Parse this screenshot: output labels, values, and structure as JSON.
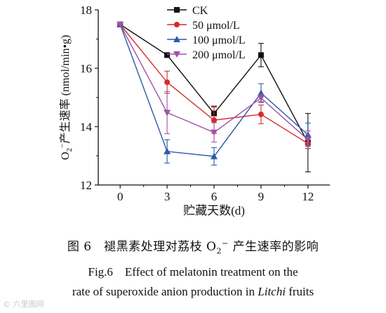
{
  "caption": {
    "cn_pre": "图 6　褪黑素处理对荔枝 O",
    "cn_sub": "2",
    "cn_sup": "−",
    "cn_post": " 产生速率的影响",
    "en_line1": "Fig.6　Effect of melatonin treatment on the",
    "en_line2_pre": "rate of superoxide anion production in ",
    "en_line2_italic": "Litchi",
    "en_line2_post": " fruits"
  },
  "watermark": "© 六里图网",
  "chart_data": {
    "type": "line",
    "xlabel": "贮藏天数(d)",
    "ylabel": {
      "pre": "O",
      "sub": "2",
      "sup": "−",
      "post": "产生速率 (nmol/min•g)"
    },
    "x": [
      0,
      3,
      6,
      9,
      12
    ],
    "xlim": [
      -1.4,
      13.4
    ],
    "ylim": [
      12,
      18
    ],
    "yticks": [
      12,
      14,
      16,
      18
    ],
    "grid": false,
    "legend_position": "top-left",
    "series": [
      {
        "name": "CK",
        "color": "#111111",
        "marker": "square",
        "values": [
          17.5,
          16.45,
          14.45,
          16.45,
          13.45
        ],
        "errors": [
          0.0,
          0.05,
          0.25,
          0.4,
          1.0
        ]
      },
      {
        "name": "50 μmol/L",
        "color": "#d62b2b",
        "marker": "circle",
        "values": [
          17.5,
          15.52,
          14.22,
          14.42,
          13.42
        ],
        "errors": [
          0.0,
          0.38,
          0.45,
          0.32,
          0.18
        ]
      },
      {
        "name": "100 μmol/L",
        "color": "#2b5aa8",
        "marker": "triangle-up",
        "values": [
          17.5,
          13.15,
          12.98,
          15.15,
          13.72
        ],
        "errors": [
          0.0,
          0.4,
          0.3,
          0.32,
          0.4
        ]
      },
      {
        "name": "200 μmol/L",
        "color": "#a052a8",
        "marker": "triangle-down",
        "values": [
          17.5,
          14.48,
          13.8,
          14.98,
          13.55
        ],
        "errors": [
          0.0,
          0.72,
          0.33,
          0.12,
          0.3
        ]
      }
    ]
  }
}
